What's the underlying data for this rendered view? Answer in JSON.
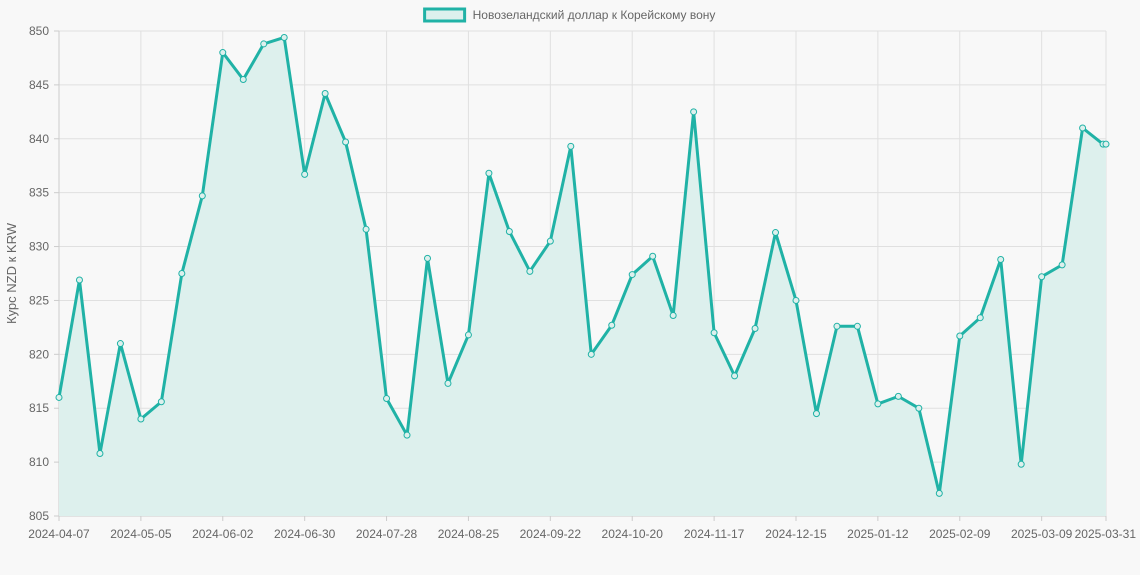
{
  "chart_data": {
    "type": "area",
    "legend": {
      "label": "Новозеландский доллар к Корейскому вону",
      "position": "top-center"
    },
    "ylabel": "Курс NZD к KRW",
    "xlabel": "",
    "ylim": [
      805,
      850
    ],
    "y_ticks": [
      805,
      810,
      815,
      820,
      825,
      830,
      835,
      840,
      845,
      850
    ],
    "x_tick_labels": [
      "2024-04-07",
      "2024-05-05",
      "2024-06-02",
      "2024-06-30",
      "2024-07-28",
      "2024-08-25",
      "2024-09-22",
      "2024-10-20",
      "2024-11-17",
      "2024-12-15",
      "2025-01-12",
      "2025-02-09",
      "2025-03-09",
      "2025-03-31"
    ],
    "grid": true,
    "colors": {
      "line": "#20b2a6",
      "fill": "#ddf0ed",
      "grid": "#e0e0e0",
      "axis": "#cccccc",
      "text": "#666666"
    },
    "series": [
      {
        "name": "Новозеландский доллар к Корейскому вону",
        "x": [
          "2024-04-07",
          "2024-04-14",
          "2024-04-21",
          "2024-04-28",
          "2024-05-05",
          "2024-05-12",
          "2024-05-19",
          "2024-05-26",
          "2024-06-02",
          "2024-06-09",
          "2024-06-16",
          "2024-06-23",
          "2024-06-30",
          "2024-07-07",
          "2024-07-14",
          "2024-07-21",
          "2024-07-28",
          "2024-08-04",
          "2024-08-11",
          "2024-08-18",
          "2024-08-25",
          "2024-09-01",
          "2024-09-08",
          "2024-09-15",
          "2024-09-22",
          "2024-09-29",
          "2024-10-06",
          "2024-10-13",
          "2024-10-20",
          "2024-10-27",
          "2024-11-03",
          "2024-11-10",
          "2024-11-17",
          "2024-11-24",
          "2024-12-01",
          "2024-12-08",
          "2024-12-15",
          "2024-12-22",
          "2024-12-29",
          "2025-01-05",
          "2025-01-12",
          "2025-01-19",
          "2025-01-26",
          "2025-02-02",
          "2025-02-09",
          "2025-02-16",
          "2025-02-23",
          "2025-03-02",
          "2025-03-09",
          "2025-03-16",
          "2025-03-23",
          "2025-03-30",
          "2025-03-31"
        ],
        "values": [
          816.0,
          826.9,
          810.8,
          821.0,
          814.0,
          815.6,
          827.5,
          834.7,
          848.0,
          845.5,
          848.8,
          849.4,
          836.7,
          844.2,
          839.7,
          831.6,
          815.9,
          812.5,
          828.9,
          817.3,
          821.8,
          836.8,
          831.4,
          827.7,
          830.5,
          839.3,
          820.0,
          822.7,
          827.4,
          829.1,
          823.6,
          842.5,
          822.0,
          818.0,
          822.4,
          831.3,
          825.0,
          814.5,
          822.6,
          822.6,
          815.4,
          816.1,
          815.0,
          807.1,
          821.7,
          823.4,
          828.8,
          809.8,
          827.2,
          828.3,
          841.0,
          839.5,
          839.5
        ]
      }
    ]
  }
}
